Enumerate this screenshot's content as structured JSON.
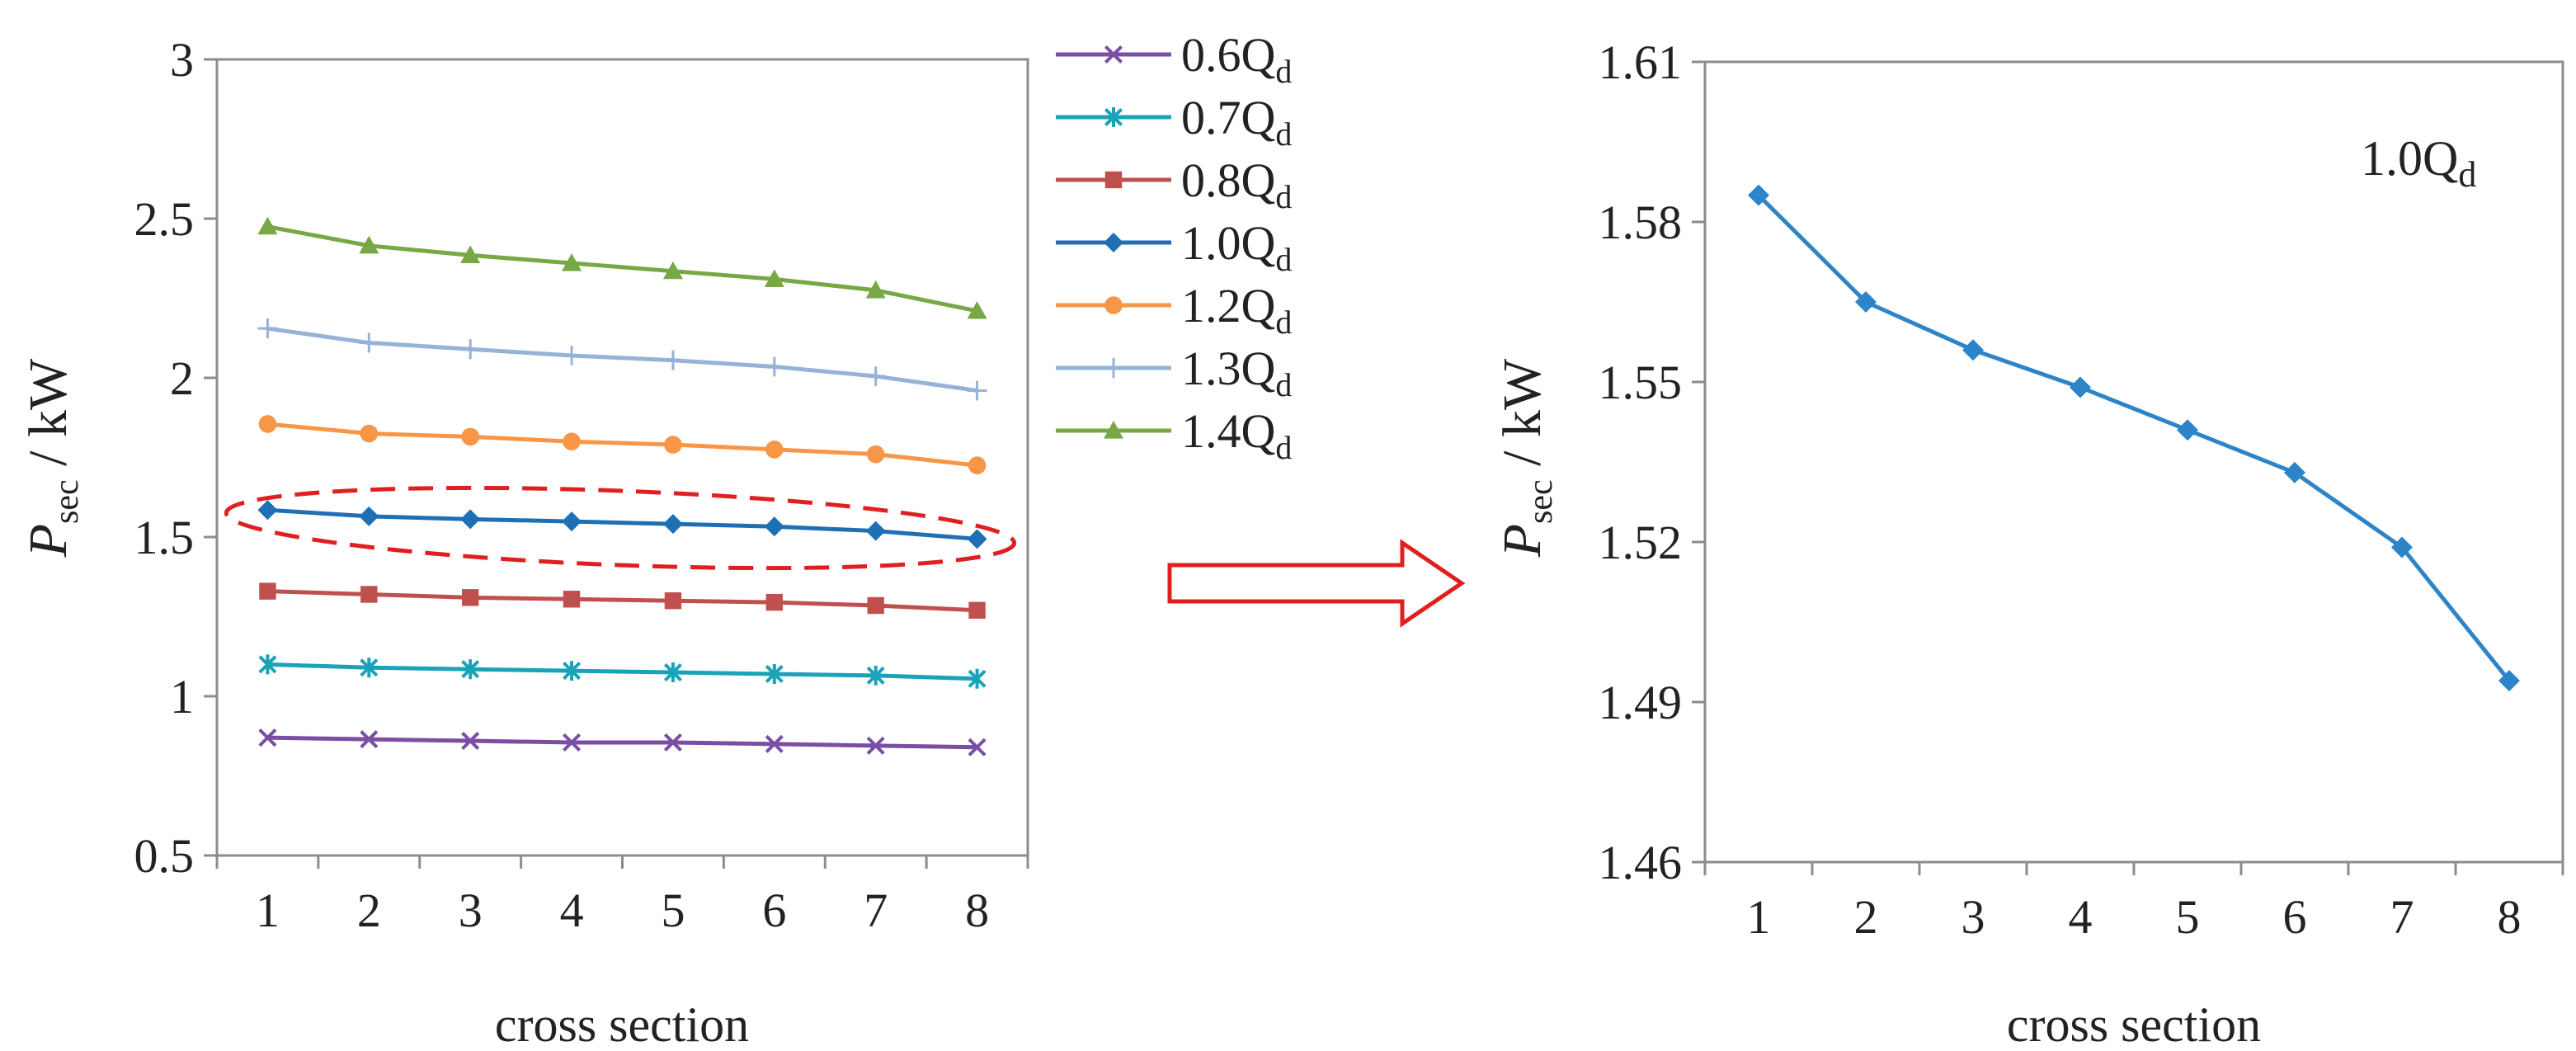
{
  "chart_data": [
    {
      "type": "line",
      "title": "",
      "xlabel": "cross section",
      "ylabel": {
        "symbol": "P",
        "subscript": "sec",
        "unit": " / kW"
      },
      "x": [
        1,
        2,
        3,
        4,
        5,
        6,
        7,
        8
      ],
      "ylim": [
        0.5,
        3
      ],
      "yticks": [
        "0.5",
        "1",
        "1.5",
        "2",
        "2.5",
        "3"
      ],
      "xticks": [
        "1",
        "2",
        "3",
        "4",
        "5",
        "6",
        "7",
        "8"
      ],
      "legend_position": "right",
      "highlight_series": "1.0Qd",
      "series": [
        {
          "name": "0.6Qd",
          "base": "0.6Q",
          "sub": "d",
          "color": "#7a4fa3",
          "marker": "x",
          "values": [
            0.87,
            0.865,
            0.86,
            0.855,
            0.855,
            0.85,
            0.845,
            0.84
          ]
        },
        {
          "name": "0.7Qd",
          "base": "0.7Q",
          "sub": "d",
          "color": "#1aa3b8",
          "marker": "star",
          "values": [
            1.1,
            1.09,
            1.085,
            1.08,
            1.075,
            1.07,
            1.065,
            1.055
          ]
        },
        {
          "name": "0.8Qd",
          "base": "0.8Q",
          "sub": "d",
          "color": "#c0504d",
          "marker": "square",
          "values": [
            1.33,
            1.32,
            1.31,
            1.305,
            1.3,
            1.295,
            1.285,
            1.27
          ]
        },
        {
          "name": "1.0Qd",
          "base": "1.0Q",
          "sub": "d",
          "color": "#1f6fb5",
          "marker": "diamond",
          "values": [
            1.585,
            1.565,
            1.556,
            1.549,
            1.541,
            1.533,
            1.519,
            1.494
          ]
        },
        {
          "name": "1.2Qd",
          "base": "1.2Q",
          "sub": "d",
          "color": "#f79646",
          "marker": "circle",
          "values": [
            1.855,
            1.825,
            1.815,
            1.8,
            1.79,
            1.775,
            1.76,
            1.725
          ]
        },
        {
          "name": "1.3Qd",
          "base": "1.3Q",
          "sub": "d",
          "color": "#95b3d7",
          "marker": "plus",
          "values": [
            2.155,
            2.11,
            2.09,
            2.07,
            2.055,
            2.035,
            2.005,
            1.96
          ]
        },
        {
          "name": "1.4Qd",
          "base": "1.4Q",
          "sub": "d",
          "color": "#77a845",
          "marker": "triangle",
          "values": [
            2.475,
            2.415,
            2.385,
            2.36,
            2.335,
            2.31,
            2.275,
            2.21
          ]
        }
      ]
    },
    {
      "type": "line",
      "title": "",
      "annotation": {
        "base": "1.0Q",
        "sub": "d"
      },
      "xlabel": "cross section",
      "ylabel": {
        "symbol": "P",
        "subscript": "sec",
        "unit": " / kW"
      },
      "x": [
        1,
        2,
        3,
        4,
        5,
        6,
        7,
        8
      ],
      "ylim": [
        1.46,
        1.61
      ],
      "yticks": [
        "1.46",
        "1.49",
        "1.52",
        "1.55",
        "1.58",
        "1.61"
      ],
      "xticks": [
        "1",
        "2",
        "3",
        "4",
        "5",
        "6",
        "7",
        "8"
      ],
      "series": [
        {
          "name": "1.0Qd",
          "color": "#2e84c8",
          "marker": "diamond",
          "values": [
            1.585,
            1.565,
            1.556,
            1.549,
            1.541,
            1.533,
            1.519,
            1.494
          ]
        }
      ]
    }
  ],
  "arrow": {
    "color": "#e02020"
  },
  "highlight": {
    "color": "#e02020"
  }
}
